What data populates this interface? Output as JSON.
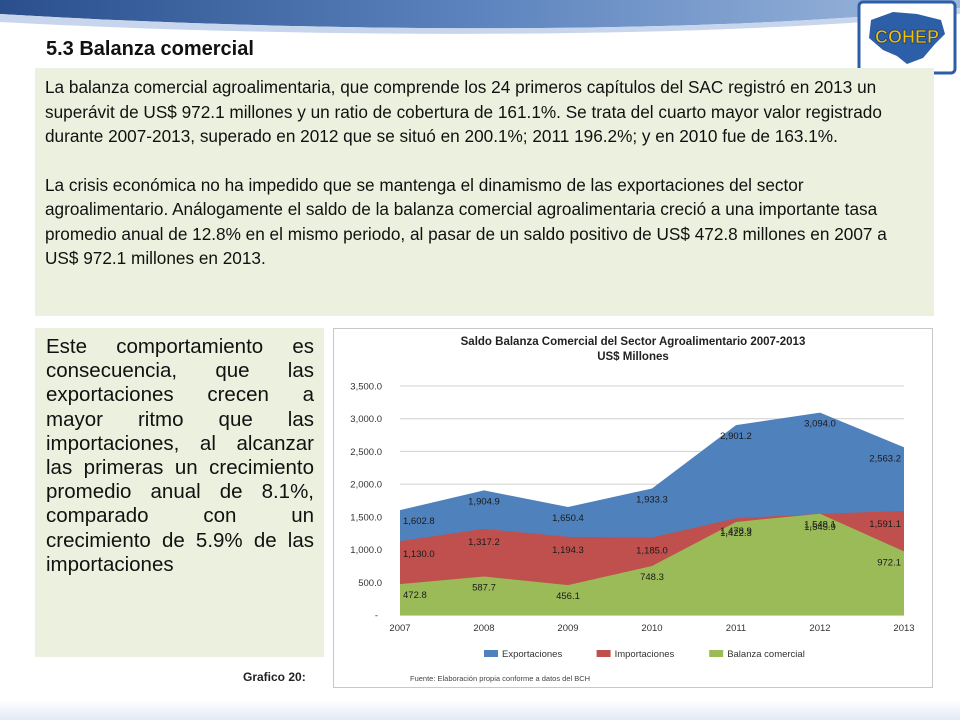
{
  "heading": "5.3 Balanza comercial",
  "intro_paragraphs": [
    "La balanza comercial agroalimentaria, que comprende los 24 primeros capítulos del SAC registró en 2013 un superávit de US$ 972.1 millones y un ratio de cobertura de 161.1%. Se trata del cuarto mayor valor registrado durante 2007-2013, superado en 2012 que se situó en 200.1%; 2011 196.2%; y en 2010 fue de 163.1%.",
    "La crisis económica no ha impedido que se mantenga el dinamismo de las exportaciones del sector agroalimentario. Análogamente el saldo de la balanza comercial agroalimentaria creció a una importante tasa promedio anual de 12.8% en el mismo periodo, al pasar de un saldo positivo de US$ 472.8 millones en 2007 a US$ 972.1 millones en 2013."
  ],
  "side_paragraph": "Este comportamiento es consecuencia, que las exportaciones crecen a mayor ritmo que las importaciones, al alcanzar las primeras un crecimiento promedio anual de 8.1%, comparado con un crecimiento de 5.9% de las importaciones",
  "figure_label": "Grafico 20:",
  "logo_text": "COHEP",
  "colors": {
    "exportaciones": "#4f81bd",
    "importaciones": "#c0504d",
    "balanza": "#9bbb59",
    "panel_bg": "#ebf1de",
    "logo_text": "#f2c200"
  },
  "chart_data": {
    "type": "area",
    "title": "Saldo Balanza Comercial del Sector Agroalimentario 2007-2013",
    "subtitle": "US$ Millones",
    "categories": [
      "2007",
      "2008",
      "2009",
      "2010",
      "2011",
      "2012",
      "2013"
    ],
    "series": [
      {
        "name": "Exportaciones",
        "values": [
          1602.8,
          1904.9,
          1650.4,
          1933.3,
          2901.2,
          3094.0,
          2563.2
        ],
        "labels": [
          "1,602.8",
          "1,904.9",
          "1,650.4",
          "1,933.3",
          "2,901.2",
          "3,094.0",
          "2,563.2"
        ]
      },
      {
        "name": "Importaciones",
        "values": [
          1130.0,
          1317.2,
          1194.3,
          1185.0,
          1478.9,
          1545.9,
          1591.1
        ],
        "labels": [
          "1,130.0",
          "1,317.2",
          "1,194.3",
          "1,185.0",
          "1,478.9",
          "1,545.9",
          "1,591.1"
        ]
      },
      {
        "name": "Balanza comercial",
        "values": [
          472.8,
          587.7,
          456.1,
          748.3,
          1422.3,
          1548.1,
          972.1
        ],
        "labels": [
          "472.8",
          "587.7",
          "456.1",
          "748.3",
          "1,422.3",
          "1,548.1",
          "972.1"
        ]
      }
    ],
    "y_ticks": [
      "-",
      "500.0",
      "1,000.0",
      "1,500.0",
      "2,000.0",
      "2,500.0",
      "3,000.0",
      "3,500.0"
    ],
    "ylim": [
      0,
      3500
    ],
    "grid": true,
    "legend": "bottom",
    "source": "Fuente: Elaboración propia conforme a datos del BCH"
  }
}
